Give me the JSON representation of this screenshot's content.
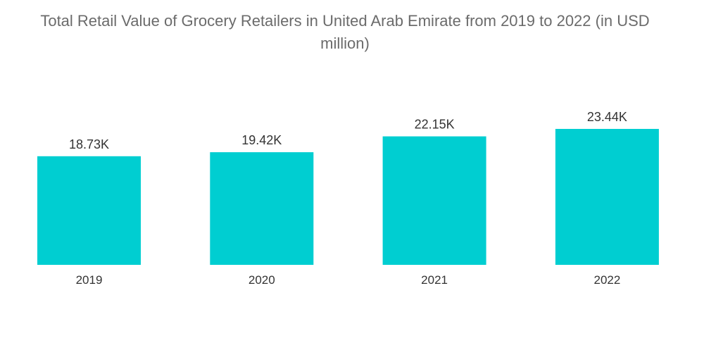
{
  "chart_data": {
    "type": "bar",
    "title": "Total Retail Value of Grocery Retailers in United Arab Emirate from 2019 to 2022 (in USD million)",
    "categories": [
      "2019",
      "2020",
      "2021",
      "2022"
    ],
    "values": [
      18730,
      19420,
      22150,
      23440
    ],
    "data_labels": [
      "18.73K",
      "19.42K",
      "22.15K",
      "23.44K"
    ],
    "xlabel": "",
    "ylabel": "",
    "ylim": [
      0,
      23440
    ],
    "grid": false,
    "legend": "none",
    "bar_color": "#00ced1"
  }
}
